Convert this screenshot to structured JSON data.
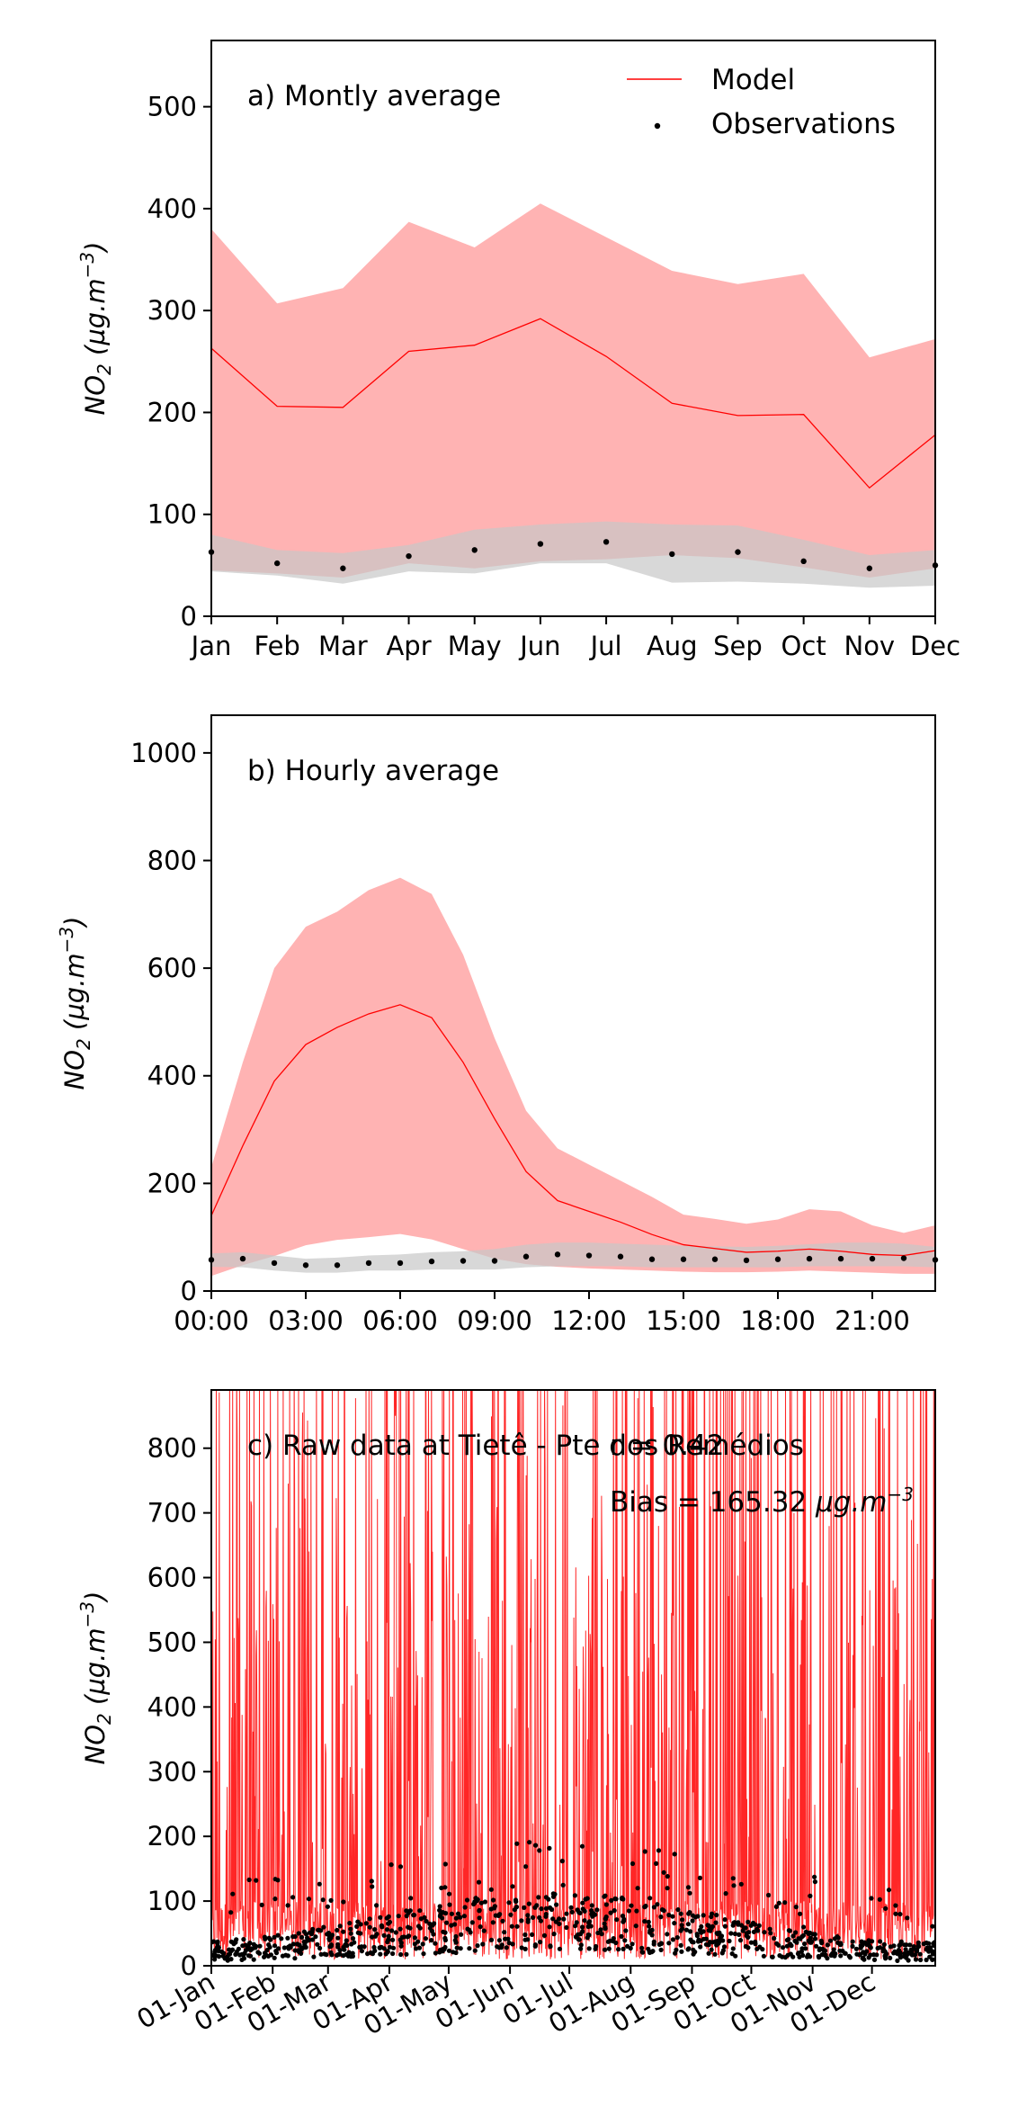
{
  "chart_data": [
    {
      "type": "line",
      "panel": "a",
      "title": "a) Montly average",
      "ylabel": "NO₂ (µg.m⁻³)",
      "ylabel_main": "NO",
      "ylabel_sub": "2",
      "ylabel_unit": " (µg.m",
      "ylabel_exp": "−3",
      "ylabel_close": ")",
      "ylim": [
        0,
        565
      ],
      "yticks": [
        0,
        100,
        200,
        300,
        400,
        500
      ],
      "categories": [
        "Jan",
        "Feb",
        "Mar",
        "Apr",
        "May",
        "Jun",
        "Jul",
        "Aug",
        "Sep",
        "Oct",
        "Nov",
        "Dec"
      ],
      "legend": {
        "placement": "top-right",
        "model_label": "Model",
        "obs_label": "Observations"
      },
      "series": [
        {
          "name": "Model",
          "color": "#ff0000",
          "band_color": "#ffb3b3",
          "values": [
            263,
            206,
            205,
            260,
            266,
            292,
            255,
            209,
            197,
            198,
            126,
            178
          ],
          "upper": [
            380,
            307,
            322,
            387,
            362,
            405,
            372,
            339,
            326,
            336,
            254,
            272
          ],
          "lower": [
            45,
            42,
            38,
            52,
            47,
            54,
            56,
            60,
            57,
            48,
            38,
            47
          ]
        },
        {
          "name": "Observations",
          "color": "#000000",
          "band_color": "#c8c8c8",
          "values": [
            63,
            52,
            47,
            59,
            65,
            71,
            73,
            61,
            63,
            54,
            47,
            50
          ],
          "upper": [
            80,
            65,
            62,
            70,
            85,
            90,
            93,
            90,
            89,
            75,
            60,
            65
          ],
          "lower": [
            44,
            40,
            32,
            44,
            42,
            52,
            52,
            33,
            34,
            32,
            28,
            30
          ]
        }
      ]
    },
    {
      "type": "line",
      "panel": "b",
      "title": "b) Hourly average",
      "ylabel": "NO₂ (µg.m⁻³)",
      "ylabel_main": "NO",
      "ylabel_sub": "2",
      "ylabel_unit": " (µg.m",
      "ylabel_exp": "−3",
      "ylabel_close": ")",
      "ylim": [
        0,
        1070
      ],
      "yticks": [
        0,
        200,
        400,
        600,
        800,
        1000
      ],
      "xticks": [
        0,
        3,
        6,
        9,
        12,
        15,
        18,
        21
      ],
      "xticklabels": [
        "00:00",
        "03:00",
        "06:00",
        "09:00",
        "12:00",
        "15:00",
        "18:00",
        "21:00"
      ],
      "xlim": [
        0,
        23
      ],
      "x": [
        0,
        1,
        2,
        3,
        4,
        5,
        6,
        7,
        8,
        9,
        10,
        11,
        12,
        13,
        14,
        15,
        16,
        17,
        18,
        19,
        20,
        21,
        22,
        23
      ],
      "series": [
        {
          "name": "Model",
          "color": "#ff0000",
          "band_color": "#ffb3b3",
          "values": [
            140,
            270,
            390,
            458,
            490,
            515,
            532,
            508,
            425,
            320,
            222,
            168,
            148,
            128,
            105,
            86,
            79,
            72,
            74,
            78,
            74,
            68,
            66,
            75
          ],
          "upper": [
            230,
            425,
            600,
            677,
            705,
            745,
            768,
            738,
            625,
            470,
            335,
            265,
            235,
            205,
            175,
            142,
            134,
            125,
            133,
            152,
            148,
            122,
            108,
            122
          ],
          "lower": [
            28,
            48,
            65,
            85,
            95,
            100,
            106,
            96,
            78,
            60,
            50,
            45,
            42,
            40,
            38,
            36,
            35,
            35,
            36,
            38,
            36,
            34,
            32,
            32
          ]
        },
        {
          "name": "Observations",
          "color": "#000000",
          "band_color": "#c8c8c8",
          "values": [
            58,
            60,
            52,
            48,
            48,
            52,
            52,
            55,
            56,
            56,
            64,
            68,
            66,
            64,
            59,
            59,
            59,
            57,
            59,
            60,
            60,
            60,
            61,
            58
          ],
          "upper": [
            70,
            72,
            66,
            60,
            62,
            66,
            68,
            72,
            74,
            78,
            86,
            90,
            90,
            88,
            86,
            84,
            83,
            82,
            84,
            87,
            90,
            90,
            88,
            82
          ],
          "lower": [
            45,
            44,
            38,
            34,
            34,
            38,
            38,
            40,
            40,
            40,
            44,
            46,
            46,
            46,
            44,
            44,
            44,
            44,
            44,
            46,
            46,
            46,
            46,
            44
          ]
        }
      ]
    },
    {
      "type": "line",
      "panel": "c",
      "title": "c) Raw data at  Tietê - Pte dos Remédios",
      "r_text": "r = 0.42",
      "bias_text": "Bias = 165.32 ",
      "bias_unit": "µg.m",
      "bias_exp": "−3",
      "ylabel": "NO₂ (µg.m⁻³)",
      "ylabel_main": "NO",
      "ylabel_sub": "2",
      "ylabel_unit": " (µg.m",
      "ylabel_exp": "−3",
      "ylabel_close": ")",
      "ylim": [
        0,
        890
      ],
      "yticks": [
        0,
        100,
        200,
        300,
        400,
        500,
        600,
        700,
        800
      ],
      "xlim_days": [
        0,
        366
      ],
      "xtick_days": [
        0,
        31,
        59,
        90,
        120,
        151,
        181,
        212,
        243,
        273,
        304,
        334
      ],
      "xticklabels": [
        "01-Jan",
        "01-Feb",
        "01-Mar",
        "01-Apr",
        "01-May",
        "01-Jun",
        "01-Jul",
        "01-Aug",
        "01-Sep",
        "01-Oct",
        "01-Nov",
        "01-Dec"
      ],
      "series": [
        {
          "name": "Model",
          "color": "#ff0000",
          "description_of_values": "hourly modelled NO2, frequent peaks exceeding 890"
        },
        {
          "name": "Observations",
          "color": "#000000",
          "description_of_values": "hourly observed NO2, mostly 10–180"
        }
      ]
    }
  ]
}
